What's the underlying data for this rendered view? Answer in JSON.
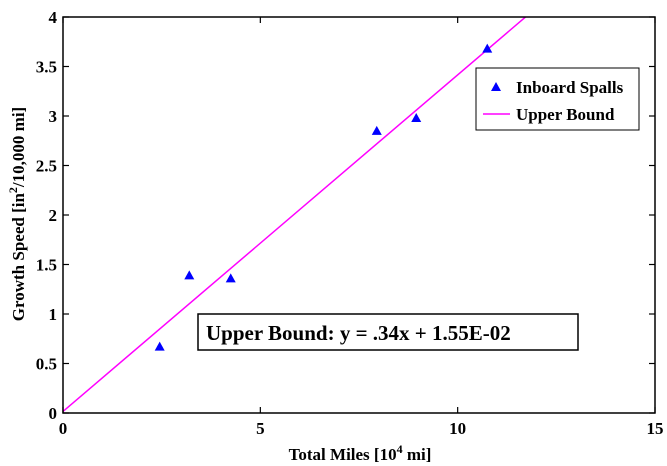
{
  "chart_data": {
    "type": "scatter",
    "xlabel_pre": "Total Miles [10",
    "xlabel_sup": "4",
    "xlabel_post": " mi]",
    "ylabel_pre": "Growth Speed [in",
    "ylabel_sup": "2",
    "ylabel_post": "/10,000 mi]",
    "xlim": [
      0,
      15
    ],
    "ylim": [
      0,
      4
    ],
    "xticks": [
      0,
      5,
      10,
      15
    ],
    "xtick_labels": [
      "0",
      "5",
      "10",
      "15"
    ],
    "yticks": [
      0,
      0.5,
      1,
      1.5,
      2,
      2.5,
      3,
      3.5,
      4
    ],
    "ytick_labels": [
      "0",
      "0.5",
      "1",
      "1.5",
      "2",
      "2.5",
      "3",
      "3.5",
      "4"
    ],
    "grid": false,
    "legend_position": "top-right",
    "series": [
      {
        "name": "Inboard Spalls",
        "kind": "scatter",
        "marker": "triangle",
        "color": "#0000ff",
        "x": [
          2.45,
          3.2,
          4.25,
          7.95,
          8.95,
          10.75
        ],
        "y": [
          0.67,
          1.39,
          1.36,
          2.85,
          2.98,
          3.68
        ]
      },
      {
        "name": "Upper Bound",
        "kind": "line",
        "color": "#ff00ff",
        "slope": 0.34,
        "intercept": 0.0155
      }
    ],
    "annotation": "Upper Bound: y = .34x + 1.55E-02"
  }
}
